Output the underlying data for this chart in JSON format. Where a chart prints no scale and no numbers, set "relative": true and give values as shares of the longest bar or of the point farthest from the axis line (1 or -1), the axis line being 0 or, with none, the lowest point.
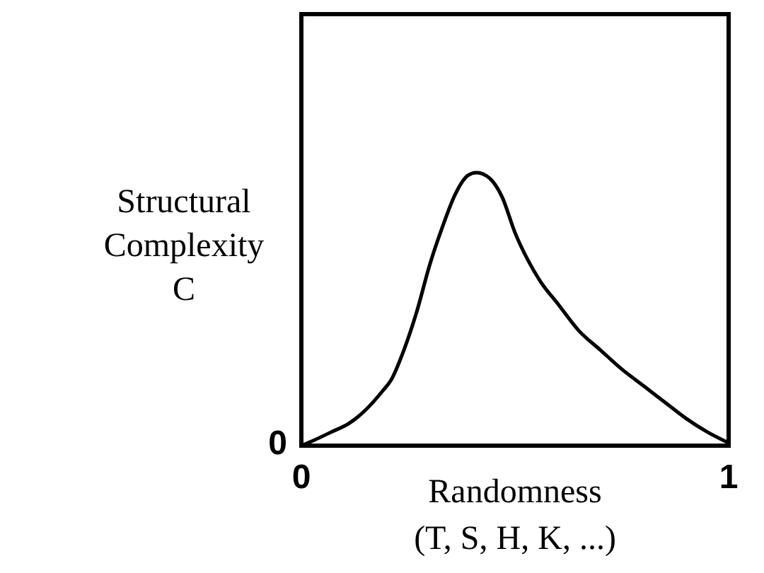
{
  "chart_data": {
    "type": "line",
    "relative": true,
    "xlabel": "Randomness\n(T, S, H, K, ...)",
    "ylabel": "Structural\nComplexity\nC",
    "xlim": [
      0,
      1
    ],
    "xticks": [
      0,
      1
    ],
    "annotations": [
      "0"
    ],
    "marker": "none",
    "line_style": "solid",
    "series": [
      {
        "color": "#000000",
        "x": [
          0,
          0.03,
          0.07,
          0.11,
          0.15,
          0.19,
          0.21,
          0.24,
          0.27,
          0.3,
          0.33,
          0.36,
          0.39,
          0.41,
          0.44,
          0.47,
          0.5,
          0.53,
          0.56,
          0.6,
          0.65,
          0.7,
          0.75,
          0.8,
          0.85,
          0.9,
          0.95,
          1
        ],
        "values": [
          0,
          0.02,
          0.05,
          0.08,
          0.13,
          0.2,
          0.24,
          0.35,
          0.49,
          0.66,
          0.8,
          0.92,
          0.99,
          1,
          0.98,
          0.91,
          0.78,
          0.68,
          0.6,
          0.52,
          0.42,
          0.35,
          0.28,
          0.22,
          0.16,
          0.1,
          0.05,
          0.01
        ]
      }
    ]
  }
}
